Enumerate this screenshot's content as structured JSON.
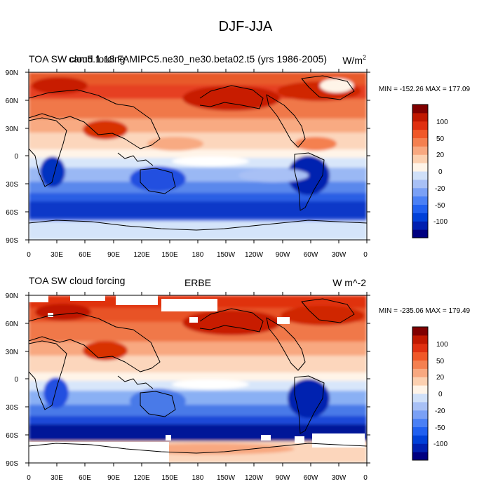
{
  "figure": {
    "title": "DJF-JJA"
  },
  "panels": [
    {
      "left_title": "TOA SW cloud forcing",
      "center_title": "cam5.1.18 FAMIPC5.ne30_ne30.beta02.t5 (yrs 1986-2005)",
      "units_base": "W/m",
      "units_sup": "2",
      "minmax": "MIN = -152.26 MAX = 177.09",
      "has_missing_patches": false
    },
    {
      "left_title": "TOA SW cloud forcing",
      "center_title": "ERBE",
      "units_base": "W m^-2",
      "units_sup": "",
      "minmax": "MIN = -235.06 MAX = 179.49",
      "has_missing_patches": true
    }
  ],
  "lat_ticks": [
    "90N",
    "60N",
    "30N",
    "0",
    "30S",
    "60S",
    "90S"
  ],
  "lon_ticks": [
    "0",
    "30E",
    "60E",
    "90E",
    "120E",
    "150E",
    "180",
    "150W",
    "120W",
    "90W",
    "60W",
    "30W",
    "0"
  ],
  "colorbar": {
    "colors": [
      "#000080",
      "#0020b0",
      "#0040d8",
      "#2060f0",
      "#4a80f5",
      "#7aa0f5",
      "#a8c0f5",
      "#d0e0f8",
      "#fff4e8",
      "#fcd0b0",
      "#f8a880",
      "#f48050",
      "#f05828",
      "#e03010",
      "#c01800",
      "#800000"
    ],
    "labels": [
      "-100",
      "-50",
      "-20",
      "0",
      "20",
      "50",
      "100"
    ]
  },
  "chart_data": {
    "type": "heatmap",
    "title": "DJF-JJA",
    "variable": "TOA SW cloud forcing",
    "x_axis": "longitude 0 to 360 (0, 30E ... 30W, 0)",
    "y_axis": "latitude 90S to 90N",
    "levels": [
      -100,
      -50,
      -20,
      0,
      20,
      50,
      100
    ],
    "series": [
      {
        "name": "cam5.1.18 FAMIPC5.ne30_ne30.beta02.t5 (yrs 1986-2005)",
        "min": -152.26,
        "max": 177.09
      },
      {
        "name": "ERBE",
        "min": -235.06,
        "max": 179.49
      }
    ]
  }
}
